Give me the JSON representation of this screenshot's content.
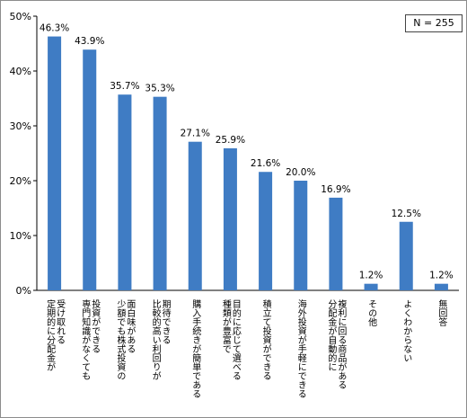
{
  "sample_note": "N = 255",
  "chart_data": {
    "type": "bar",
    "title": "",
    "xlabel": "",
    "ylabel": "",
    "ylim": [
      0,
      50
    ],
    "yticks": [
      "0%",
      "10%",
      "20%",
      "30%",
      "40%",
      "50%"
    ],
    "grid": false,
    "bar_color": "#3f7cc4",
    "categories": [
      [
        "受け取れる",
        "定期的に分配金が"
      ],
      [
        "投資ができる",
        "専門知識がなくても"
      ],
      [
        "面白味がある",
        "少額でも株式投資の"
      ],
      [
        "期待できる",
        "比較的高い利回りが"
      ],
      [
        "購入手続きが簡単である"
      ],
      [
        "目的に応じて選べる",
        "種類が豊富で"
      ],
      [
        "積立て投資ができる"
      ],
      [
        "海外投資が手軽にできる"
      ],
      [
        "複利に回る商品がある",
        "分配金が自動的に"
      ],
      [
        "その他"
      ],
      [
        "よくわからない"
      ],
      [
        "無回答"
      ]
    ],
    "values": [
      46.3,
      43.9,
      35.7,
      35.3,
      27.1,
      25.9,
      21.6,
      20.0,
      16.9,
      1.2,
      12.5,
      1.2
    ],
    "value_labels": [
      "46.3%",
      "43.9%",
      "35.7%",
      "35.3%",
      "27.1%",
      "25.9%",
      "21.6%",
      "20.0%",
      "16.9%",
      "1.2%",
      "12.5%",
      "1.2%"
    ]
  }
}
